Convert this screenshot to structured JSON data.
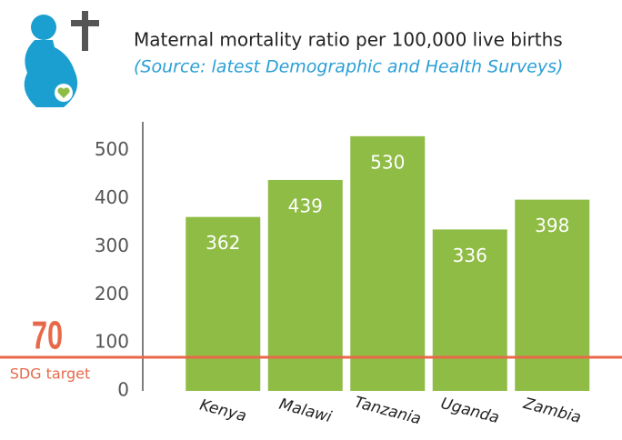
{
  "chart_data": {
    "type": "bar",
    "title": "Maternal mortality ratio per 100,000 live births",
    "subtitle": "(Source: latest Demographic and Health Surveys)",
    "categories": [
      "Kenya",
      "Malawi",
      "Tanzania",
      "Uganda",
      "Zambia"
    ],
    "values": [
      362,
      439,
      530,
      336,
      398
    ],
    "color": "#8fbc45",
    "ylim": [
      0,
      560
    ],
    "yticks": [
      0,
      100,
      200,
      300,
      400,
      500
    ],
    "reference_line": {
      "value": 70,
      "label": "SDG target",
      "color": "#e8694a"
    }
  }
}
